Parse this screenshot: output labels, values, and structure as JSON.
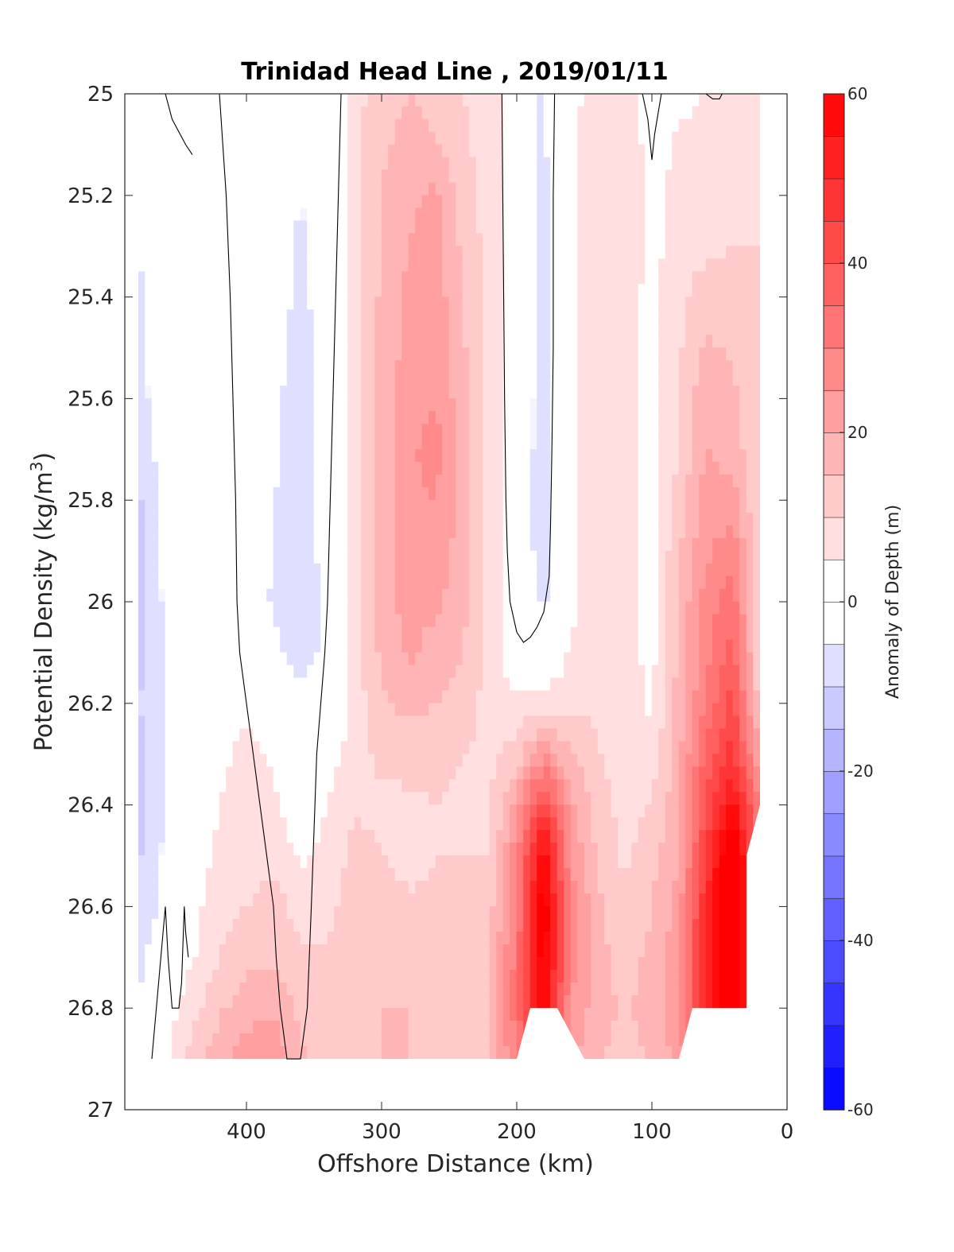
{
  "chart_data": {
    "type": "contourf",
    "title": "Trinidad Head Line , 2019/01/11",
    "xlabel": "Offshore Distance (km)",
    "ylabel_main": "Potential Density (kg/m",
    "ylabel_sup": "3",
    "ylabel_close": ")",
    "xlim": [
      490,
      0
    ],
    "ylim": [
      25,
      27
    ],
    "y_reversed": true,
    "x_ticks": [
      400,
      300,
      200,
      100,
      0
    ],
    "x_tick_labels": [
      "400",
      "300",
      "200",
      "100",
      "0"
    ],
    "y_ticks": [
      25,
      25.2,
      25.4,
      25.6,
      25.8,
      26,
      26.2,
      26.4,
      26.6,
      26.8,
      27
    ],
    "y_tick_labels": [
      "25",
      "25.2",
      "25.4",
      "25.6",
      "25.8",
      "26",
      "26.2",
      "26.4",
      "26.6",
      "26.8",
      "27"
    ],
    "colorbar": {
      "label": "Anomaly of Depth (m)",
      "range": [
        -60,
        60
      ],
      "step": 5,
      "ticks": [
        60,
        40,
        20,
        0,
        -20,
        -40,
        -60
      ],
      "tick_labels": [
        "60",
        "40",
        "20",
        "0",
        "-20",
        "-40",
        "-60"
      ],
      "colors": {
        "neg": "#0000ff",
        "zero": "#ffffff",
        "pos": "#ff0000"
      }
    },
    "x": [
      480,
      460,
      440,
      420,
      400,
      380,
      360,
      340,
      320,
      300,
      280,
      260,
      240,
      220,
      200,
      180,
      160,
      140,
      120,
      100,
      80,
      60,
      40,
      20
    ],
    "y": [
      25,
      25.1,
      25.2,
      25.3,
      25.4,
      25.5,
      25.6,
      25.7,
      25.8,
      25.9,
      26,
      26.1,
      26.2,
      26.3,
      26.4,
      26.5,
      26.6,
      26.7,
      26.8,
      26.9
    ],
    "z_note_rows_are_y": true,
    "z": [
      [
        -3,
        0,
        1,
        1,
        2,
        -2,
        -3,
        -1,
        8,
        13,
        15,
        13,
        10,
        8,
        0,
        -6,
        3,
        8,
        10,
        1,
        4,
        5,
        8,
        10
      ],
      [
        -4,
        0,
        1,
        1,
        2,
        -2,
        -4,
        -2,
        8,
        14,
        17,
        15,
        11,
        8,
        0,
        -6,
        3,
        9,
        10,
        2,
        6,
        6,
        8,
        10
      ],
      [
        -5,
        -1,
        1,
        1,
        2,
        -2,
        -5,
        -2,
        8,
        15,
        19,
        21,
        12,
        8,
        0,
        -7,
        3,
        9,
        9,
        3,
        7,
        7,
        9,
        10
      ],
      [
        -5,
        -1,
        1,
        1,
        2,
        -2,
        -6,
        -3,
        8,
        15,
        20,
        22,
        14,
        8,
        0,
        -7,
        3,
        9,
        9,
        3,
        8,
        9,
        10,
        10
      ],
      [
        -6,
        -1,
        1,
        1,
        1,
        -3,
        -6,
        -3,
        8,
        16,
        21,
        23,
        15,
        8,
        0,
        -7,
        3,
        9,
        8,
        3,
        9,
        12,
        12,
        10
      ],
      [
        -6,
        -1,
        1,
        1,
        1,
        -3,
        -7,
        -3,
        8,
        16,
        22,
        24,
        16,
        8,
        0,
        -7,
        3,
        9,
        8,
        3,
        9,
        16,
        14,
        10
      ],
      [
        -7,
        -2,
        1,
        1,
        1,
        -4,
        -7,
        -3,
        8,
        17,
        23,
        25,
        17,
        8,
        0,
        -8,
        3,
        9,
        8,
        3,
        10,
        19,
        16,
        10
      ],
      [
        -9,
        -2,
        1,
        1,
        1,
        -4,
        -7,
        -3,
        8,
        17,
        24,
        27,
        18,
        8,
        0,
        -8,
        3,
        9,
        8,
        3,
        10,
        20,
        18,
        10
      ],
      [
        -11,
        -3,
        1,
        1,
        1,
        -5,
        -7,
        -3,
        8,
        17,
        24,
        25,
        18,
        8,
        0,
        -9,
        3,
        9,
        8,
        3,
        12,
        22,
        22,
        10
      ],
      [
        -12,
        -3,
        1,
        1,
        1,
        -5,
        -8,
        -3,
        8,
        17,
        23,
        23,
        18,
        8,
        0,
        -8,
        3,
        9,
        8,
        3,
        14,
        24,
        28,
        10
      ],
      [
        -13,
        -4,
        1,
        1,
        1,
        -6,
        -10,
        -3,
        8,
        17,
        22,
        21,
        17,
        8,
        0,
        -6,
        3,
        9,
        8,
        3,
        16,
        27,
        33,
        10
      ],
      [
        -12,
        -5,
        1,
        1,
        1,
        -3,
        -9,
        -3,
        8,
        16,
        21,
        18,
        15,
        8,
        1,
        -2,
        6,
        9,
        8,
        3,
        16,
        28,
        37,
        10
      ],
      [
        -10,
        -5,
        1,
        1,
        4,
        2,
        -2,
        -2,
        7,
        14,
        17,
        15,
        13,
        8,
        6,
        7,
        9,
        9,
        8,
        4,
        17,
        31,
        42,
        12
      ],
      [
        -12,
        -5,
        1,
        3,
        7,
        4,
        1,
        2,
        8,
        11,
        12,
        12,
        10,
        9,
        12,
        24,
        15,
        10,
        9,
        7,
        18,
        36,
        47,
        20
      ],
      [
        -12,
        -5,
        1,
        5,
        8,
        6,
        2,
        5,
        9,
        9,
        9,
        10,
        9,
        9,
        22,
        45,
        22,
        12,
        8,
        10,
        19,
        40,
        57,
        30
      ],
      [
        -11,
        -4,
        2,
        6,
        8,
        8,
        4,
        6,
        12,
        10,
        8,
        10,
        10,
        10,
        28,
        60,
        25,
        14,
        9,
        13,
        20,
        45,
        70,
        30
      ],
      [
        -10,
        -3,
        3,
        8,
        10,
        12,
        8,
        8,
        13,
        13,
        11,
        11,
        11,
        13,
        30,
        65,
        28,
        16,
        11,
        15,
        22,
        50,
        70,
        30
      ],
      [
        -7,
        2,
        4,
        10,
        13,
        14,
        11,
        11,
        14,
        14,
        14,
        13,
        13,
        14,
        32,
        64,
        28,
        17,
        13,
        16,
        24,
        52,
        70,
        30
      ],
      [
        -5,
        2,
        8,
        14,
        18,
        19,
        14,
        12,
        14,
        15,
        15,
        14,
        14,
        15,
        33,
        60,
        25,
        17,
        14,
        17,
        25,
        50,
        70,
        30
      ],
      [
        -4,
        3,
        12,
        18,
        22,
        24,
        16,
        13,
        14,
        15,
        15,
        14,
        14,
        15,
        30,
        50,
        22,
        15,
        14,
        15,
        22,
        40,
        45,
        30
      ]
    ],
    "mask": {
      "y_cutoff": 26.9,
      "bottom_outline_x": [
        490,
        480,
        460,
        440,
        420,
        400,
        300,
        200,
        190,
        180,
        170,
        150,
        100,
        80,
        70,
        30,
        30,
        20,
        20,
        0,
        0,
        490
      ],
      "bottom_outline_y": [
        27,
        26.9,
        26.9,
        26.9,
        26.9,
        26.9,
        26.9,
        26.9,
        26.8,
        26.8,
        26.8,
        26.9,
        26.9,
        26.9,
        26.8,
        26.8,
        26.5,
        26.4,
        25,
        25,
        27,
        27
      ],
      "left_blank_x": 480,
      "right_blank_x": 20
    },
    "zero_contours": [
      {
        "x": [
          460,
          455,
          445,
          440
        ],
        "y": [
          25,
          25.05,
          25.1,
          25.12
        ]
      },
      {
        "x": [
          420,
          415,
          412,
          410,
          408,
          407,
          405,
          400,
          395,
          390,
          385,
          380,
          378,
          375,
          370,
          360,
          355,
          352,
          350,
          348,
          345,
          342,
          340,
          338,
          336,
          334,
          332,
          330,
          331,
          332,
          335
        ],
        "y": [
          25,
          25.2,
          25.4,
          25.6,
          25.8,
          26,
          26.1,
          26.2,
          26.3,
          26.4,
          26.5,
          26.6,
          26.7,
          26.8,
          26.9,
          26.9,
          26.8,
          26.6,
          26.45,
          26.3,
          26.2,
          26.1,
          26.0,
          25.8,
          25.6,
          25.4,
          25.2,
          25.0,
          24.95,
          24.95,
          25
        ]
      },
      {
        "x": [
          211,
          210,
          209,
          208,
          207,
          205,
          200,
          195,
          190,
          185,
          180,
          176,
          175,
          174,
          173,
          173,
          172
        ],
        "y": [
          25,
          25.3,
          25.6,
          25.8,
          25.9,
          26,
          26.06,
          26.08,
          26.07,
          26.05,
          26.02,
          25.95,
          25.85,
          25.7,
          25.5,
          25.2,
          25
        ]
      },
      {
        "x": [
          107,
          103,
          100,
          98,
          93
        ],
        "y": [
          25,
          25.05,
          25.13,
          25.08,
          25
        ]
      },
      {
        "x": [
          470,
          465,
          460,
          458,
          455,
          450,
          448,
          446,
          445,
          443
        ],
        "y": [
          26.9,
          26.75,
          26.6,
          26.7,
          26.8,
          26.8,
          26.75,
          26.6,
          26.65,
          26.7
        ]
      },
      {
        "x": [
          60,
          55,
          50,
          48
        ],
        "y": [
          25,
          25.01,
          25.01,
          25
        ]
      }
    ]
  }
}
